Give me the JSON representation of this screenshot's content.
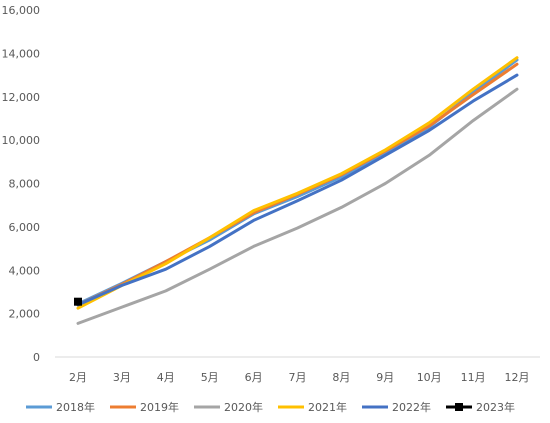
{
  "chart_data": {
    "type": "line",
    "title": "",
    "xlabel": "",
    "ylabel": "",
    "categories": [
      "2月",
      "3月",
      "4月",
      "5月",
      "6月",
      "7月",
      "8月",
      "9月",
      "10月",
      "11月",
      "12月"
    ],
    "ylim": [
      0,
      16000
    ],
    "yticks": [
      0,
      2000,
      4000,
      6000,
      8000,
      10000,
      12000,
      14000,
      16000
    ],
    "ytick_labels": [
      "0",
      "2,000",
      "4,000",
      "6,000",
      "8,000",
      "10,000",
      "12,000",
      "14,000",
      "16,000"
    ],
    "grid": false,
    "legend_position": "bottom",
    "series": [
      {
        "name": "2018年",
        "color": "#5B9BD5",
        "values": [
          2450,
          3400,
          4400,
          5400,
          6600,
          7400,
          8300,
          9400,
          10600,
          12200,
          13700
        ]
      },
      {
        "name": "2019年",
        "color": "#ED7D31",
        "values": [
          2400,
          3350,
          4400,
          5500,
          6650,
          7500,
          8400,
          9500,
          10650,
          12100,
          13500
        ]
      },
      {
        "name": "2020年",
        "color": "#A5A5A5",
        "values": [
          1550,
          2300,
          3050,
          4050,
          5100,
          5950,
          6900,
          8000,
          9300,
          10900,
          12350
        ]
      },
      {
        "name": "2021年",
        "color": "#FFC000",
        "values": [
          2250,
          3300,
          4300,
          5500,
          6750,
          7550,
          8450,
          9550,
          10800,
          12350,
          13800
        ]
      },
      {
        "name": "2022年",
        "color": "#4472C4",
        "values": [
          2400,
          3300,
          4050,
          5100,
          6300,
          7200,
          8150,
          9300,
          10450,
          11800,
          13000
        ]
      },
      {
        "name": "2023年",
        "color": "#000000",
        "marker": "square",
        "values": [
          2550,
          null,
          null,
          null,
          null,
          null,
          null,
          null,
          null,
          null,
          null
        ]
      }
    ]
  }
}
